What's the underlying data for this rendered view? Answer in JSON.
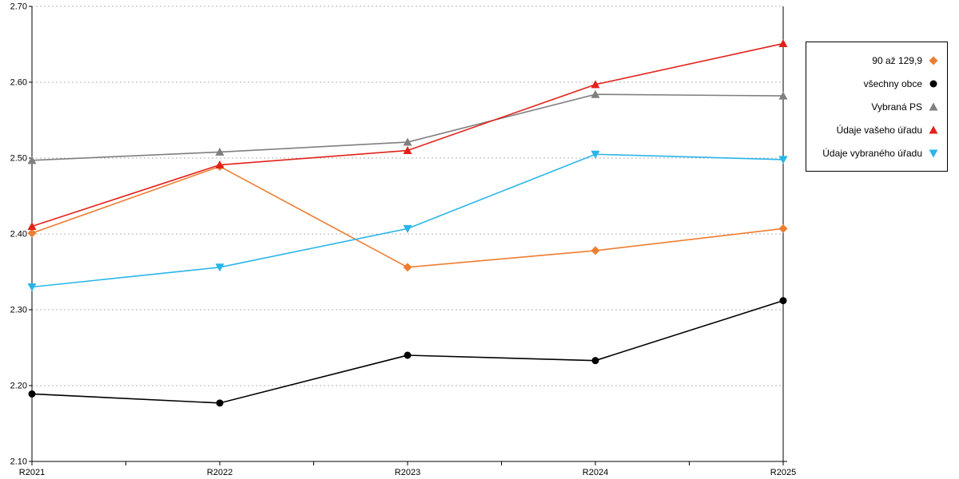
{
  "page": {
    "background": "#ffffff"
  },
  "chart": {
    "y_axis": {
      "min": 2.1,
      "max": 2.7,
      "ticks": [
        {
          "value": 2.1,
          "label": "2.10"
        },
        {
          "value": 2.2,
          "label": "2.20"
        },
        {
          "value": 2.3,
          "label": "2.30"
        },
        {
          "value": 2.4,
          "label": "2.40"
        },
        {
          "value": 2.5,
          "label": "2.50"
        },
        {
          "value": 2.6,
          "label": "2.60"
        },
        {
          "value": 2.7,
          "label": "2.70"
        }
      ]
    },
    "x_axis": {
      "categories": [
        "R2021",
        "R2022",
        "R2023",
        "R2024",
        "R2025"
      ]
    },
    "colors": {
      "grid": "#b3b3b3",
      "axis": "#000000"
    }
  },
  "chart_data": {
    "type": "line",
    "title": "",
    "xlabel": "",
    "ylabel": "",
    "categories": [
      "R2021",
      "R2022",
      "R2023",
      "R2024",
      "R2025"
    ],
    "ylim": [
      2.1,
      2.7
    ],
    "grid": true,
    "legend_position": "right",
    "series": [
      {
        "name": "90 až 129,9",
        "color": "#ED7D31",
        "marker": "diamond",
        "values": [
          2.401,
          2.489,
          2.356,
          2.378,
          2.407
        ]
      },
      {
        "name": "všechny obce",
        "color": "#000000",
        "marker": "circle",
        "values": [
          2.189,
          2.177,
          2.24,
          2.233,
          2.312
        ]
      },
      {
        "name": "Vybraná PS",
        "color": "#7F7F7F",
        "marker": "triangle-up",
        "values": [
          2.497,
          2.508,
          2.521,
          2.584,
          2.582
        ]
      },
      {
        "name": "Údaje vašeho úřadu",
        "color": "#E32119",
        "marker": "triangle-up",
        "values": [
          2.41,
          2.491,
          2.51,
          2.597,
          2.651
        ]
      },
      {
        "name": "Údaje vybraného úřadu",
        "color": "#29B5E8",
        "marker": "triangle-down",
        "values": [
          2.33,
          2.356,
          2.407,
          2.505,
          2.498
        ]
      }
    ]
  }
}
